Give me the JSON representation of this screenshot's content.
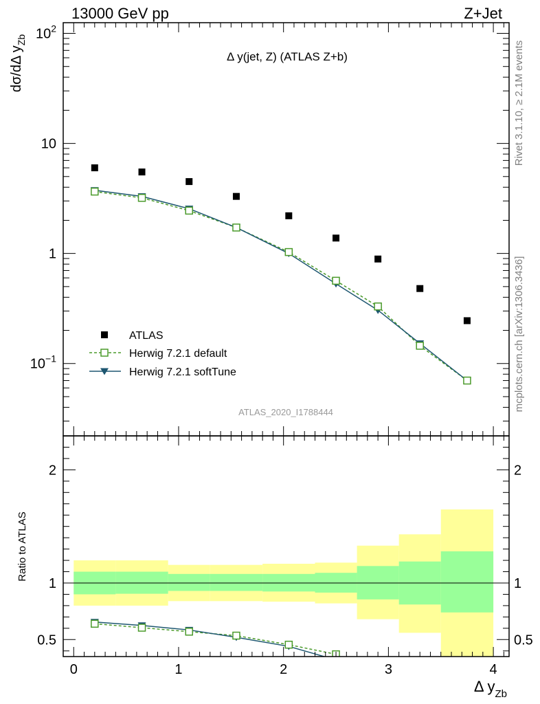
{
  "header": {
    "left": "13000 GeV pp",
    "right": "Z+Jet"
  },
  "side_labels": {
    "rivet": "Rivet 3.1.10, ≥ 2.1M events",
    "mcplots": "mcplots.cern.ch [arXiv:1306.3436]"
  },
  "chart_data": [
    {
      "type": "scatter",
      "panel": "main",
      "title": "Δ y(jet, Z) (ATLAS Z+b)",
      "ylabel": "dσ/dΔ y",
      "ylabel_sub": "Zb",
      "yscale": "log",
      "ylim": [
        0.022,
        125
      ],
      "xlim": [
        -0.1,
        4.15
      ],
      "y_ticks": [
        {
          "value": 0.1,
          "label": "10",
          "sup": "−1"
        },
        {
          "value": 1,
          "label": "1",
          "sup": ""
        },
        {
          "value": 10,
          "label": "10",
          "sup": ""
        },
        {
          "value": 100,
          "label": "10",
          "sup": "2"
        }
      ],
      "watermark": "ATLAS_2020_I1788444",
      "legend_position": "bottom-left",
      "series": [
        {
          "name": "ATLAS",
          "style": "black-square",
          "color": "#000000",
          "x": [
            0.2,
            0.65,
            1.1,
            1.55,
            2.05,
            2.5,
            2.9,
            3.3,
            3.75
          ],
          "y": [
            6.0,
            5.5,
            4.5,
            3.3,
            2.2,
            1.38,
            0.89,
            0.48,
            0.245
          ]
        },
        {
          "name": "Herwig 7.2.1 default",
          "style": "green-open-square-dashed",
          "color": "#4a9a2a",
          "x": [
            0.2,
            0.65,
            1.1,
            1.55,
            2.05,
            2.5,
            2.9,
            3.3,
            3.75
          ],
          "y": [
            3.65,
            3.2,
            2.45,
            1.72,
            1.03,
            0.565,
            0.33,
            0.145,
            0.07
          ]
        },
        {
          "name": "Herwig 7.2.1 softTune",
          "style": "blue-triangle-solid",
          "color": "#1d5670",
          "x": [
            0.2,
            0.65,
            1.1,
            1.55,
            2.05,
            2.5,
            2.9,
            3.3,
            3.75
          ],
          "y": [
            3.75,
            3.3,
            2.55,
            1.72,
            1.0,
            0.53,
            0.305,
            0.152,
            0.07
          ]
        }
      ]
    },
    {
      "type": "line",
      "panel": "ratio",
      "ylabel": "Ratio to ATLAS",
      "xlabel": "Δ y",
      "xlabel_sub": "Zb",
      "ylim": [
        0.35,
        2.3
      ],
      "xlim": [
        -0.1,
        4.15
      ],
      "x_ticks": [
        {
          "value": 0,
          "label": "0"
        },
        {
          "value": 1,
          "label": "1"
        },
        {
          "value": 2,
          "label": "2"
        },
        {
          "value": 3,
          "label": "3"
        },
        {
          "value": 4,
          "label": "4"
        }
      ],
      "y_ticks": [
        {
          "value": 0.5,
          "label": "0.5"
        },
        {
          "value": 1,
          "label": "1"
        },
        {
          "value": 2,
          "label": "2"
        }
      ],
      "bands": {
        "inner_color": "#99ff99",
        "outer_color": "#ffff99",
        "bins": [
          {
            "x0": 0.0,
            "x1": 0.4,
            "inner": [
              0.9,
              1.1
            ],
            "outer": [
              0.8,
              1.2
            ]
          },
          {
            "x0": 0.4,
            "x1": 0.9,
            "inner": [
              0.905,
              1.1
            ],
            "outer": [
              0.8,
              1.2
            ]
          },
          {
            "x0": 0.9,
            "x1": 1.3,
            "inner": [
              0.93,
              1.08
            ],
            "outer": [
              0.84,
              1.16
            ]
          },
          {
            "x0": 1.3,
            "x1": 1.8,
            "inner": [
              0.93,
              1.08
            ],
            "outer": [
              0.84,
              1.16
            ]
          },
          {
            "x0": 1.8,
            "x1": 2.3,
            "inner": [
              0.925,
              1.08
            ],
            "outer": [
              0.835,
              1.17
            ]
          },
          {
            "x0": 2.3,
            "x1": 2.7,
            "inner": [
              0.915,
              1.09
            ],
            "outer": [
              0.82,
              1.18
            ]
          },
          {
            "x0": 2.7,
            "x1": 3.1,
            "inner": [
              0.855,
              1.15
            ],
            "outer": [
              0.68,
              1.33
            ]
          },
          {
            "x0": 3.1,
            "x1": 3.5,
            "inner": [
              0.81,
              1.19
            ],
            "outer": [
              0.56,
              1.43
            ]
          },
          {
            "x0": 3.5,
            "x1": 4.0,
            "inner": [
              0.74,
              1.28
            ],
            "outer": [
              0.35,
              1.65
            ]
          }
        ]
      },
      "series": [
        {
          "name": "Herwig 7.2.1 default",
          "color": "#4a9a2a",
          "x": [
            0.2,
            0.65,
            1.1,
            1.55,
            2.05,
            2.5
          ],
          "y": [
            0.64,
            0.605,
            0.57,
            0.535,
            0.455,
            0.37
          ]
        },
        {
          "name": "Herwig 7.2.1 softTune",
          "color": "#1d5670",
          "x": [
            0.2,
            0.65,
            1.1,
            1.55,
            2.05,
            2.5
          ],
          "y": [
            0.655,
            0.625,
            0.585,
            0.52,
            0.44,
            0.32
          ]
        }
      ]
    }
  ]
}
